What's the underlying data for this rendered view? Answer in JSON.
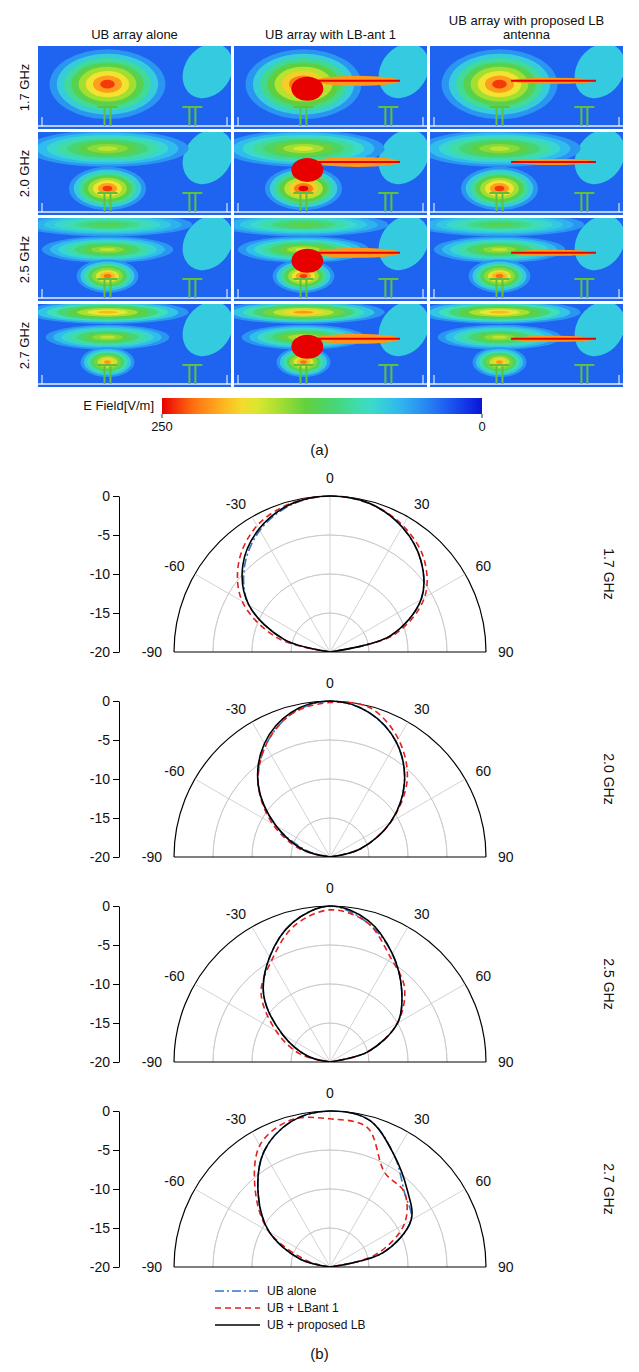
{
  "field_figure": {
    "column_titles": [
      "UB array alone",
      "UB array with LB-ant 1",
      "UB array with  proposed LB antenna"
    ],
    "row_labels": [
      "1.7 GHz",
      "2.0 GHz",
      "2.5 GHz",
      "2.7 GHz"
    ],
    "colorbar": {
      "label": "E Field[V/m]",
      "range": [
        0,
        250
      ],
      "ticks": [
        250,
        0
      ]
    },
    "label": "(a)"
  },
  "chart_data": [
    {
      "type": "polar",
      "title": "1.7 GHz",
      "x": [
        -90,
        -75,
        -60,
        -45,
        -30,
        -15,
        0,
        15,
        30,
        45,
        60,
        75,
        90
      ],
      "xlim": [
        -90,
        90
      ],
      "xticks": [
        -90,
        -60,
        -30,
        0,
        30,
        60,
        90
      ],
      "ylim": [
        -20,
        0
      ],
      "yticks": [
        0,
        -5,
        -10,
        -15,
        -20
      ],
      "grid": true,
      "series": [
        {
          "color": "#2e75c7",
          "line_style": "dashdot",
          "values": [
            -20,
            -14,
            -8,
            -4.5,
            -2,
            -0.5,
            0,
            -0.3,
            -1.5,
            -3.5,
            -6.5,
            -12,
            -20
          ]
        },
        {
          "color": "#e02020",
          "line_style": "dashed",
          "values": [
            -20,
            -13,
            -7,
            -3.5,
            -1.3,
            -0.3,
            0,
            -0.3,
            -1.3,
            -3,
            -6,
            -11.5,
            -20
          ]
        },
        {
          "color": "#000000",
          "line_style": "solid",
          "values": [
            -20,
            -14,
            -8,
            -4.2,
            -1.8,
            -0.4,
            0,
            -0.3,
            -1.5,
            -3.5,
            -6.5,
            -12,
            -20
          ]
        }
      ]
    },
    {
      "type": "polar",
      "title": "2.0 GHz",
      "x": [
        -90,
        -75,
        -60,
        -45,
        -30,
        -15,
        0,
        15,
        30,
        45,
        60,
        75,
        90
      ],
      "xlim": [
        -90,
        90
      ],
      "xticks": [
        -90,
        -60,
        -30,
        0,
        30,
        60,
        90
      ],
      "ylim": [
        -20,
        0
      ],
      "yticks": [
        0,
        -5,
        -10,
        -15,
        -20
      ],
      "grid": true,
      "series": [
        {
          "color": "#2e75c7",
          "line_style": "dashdot",
          "values": [
            -20,
            -17,
            -12,
            -7,
            -3.5,
            -1,
            0,
            -0.8,
            -3,
            -6.5,
            -11,
            -16,
            -20
          ]
        },
        {
          "color": "#e02020",
          "line_style": "dashed",
          "values": [
            -20,
            -16,
            -11.5,
            -7,
            -3.5,
            -1,
            -0.2,
            -0.2,
            -2.5,
            -6,
            -11,
            -16,
            -20
          ]
        },
        {
          "color": "#000000",
          "line_style": "solid",
          "values": [
            -20,
            -16.5,
            -12,
            -7,
            -3.2,
            -0.8,
            0,
            -0.8,
            -3,
            -6.5,
            -11,
            -16,
            -20
          ]
        }
      ]
    },
    {
      "type": "polar",
      "title": "2.5 GHz",
      "x": [
        -90,
        -75,
        -60,
        -45,
        -30,
        -15,
        0,
        15,
        30,
        45,
        60,
        75,
        90
      ],
      "xlim": [
        -90,
        90
      ],
      "xticks": [
        -90,
        -60,
        -30,
        0,
        30,
        60,
        90
      ],
      "ylim": [
        -20,
        0
      ],
      "yticks": [
        0,
        -5,
        -10,
        -15,
        -20
      ],
      "grid": true,
      "series": [
        {
          "color": "#2e75c7",
          "line_style": "dashdot",
          "values": [
            -20,
            -17,
            -13,
            -8,
            -4.5,
            -1.5,
            0,
            -1.5,
            -4,
            -7,
            -10,
            -15,
            -20
          ]
        },
        {
          "color": "#e02020",
          "line_style": "dashed",
          "values": [
            -20,
            -16,
            -12,
            -7.5,
            -5,
            -2,
            -0.5,
            -1.5,
            -4.5,
            -6.5,
            -10,
            -15,
            -20
          ]
        },
        {
          "color": "#000000",
          "line_style": "solid",
          "values": [
            -20,
            -17,
            -13,
            -8,
            -4.5,
            -1.5,
            0,
            -1.2,
            -4,
            -7,
            -10,
            -15,
            -20
          ]
        }
      ]
    },
    {
      "type": "polar",
      "title": "2.7 GHz",
      "x": [
        -90,
        -75,
        -60,
        -45,
        -30,
        -15,
        0,
        15,
        30,
        45,
        60,
        75,
        90
      ],
      "xlim": [
        -90,
        90
      ],
      "xticks": [
        -90,
        -60,
        -30,
        0,
        30,
        60,
        90
      ],
      "ylim": [
        -20,
        0
      ],
      "yticks": [
        0,
        -5,
        -10,
        -15,
        -20
      ],
      "grid": true,
      "legend": "bottom",
      "series": [
        {
          "name": "UB alone",
          "color": "#2e75c7",
          "line_style": "dashdot",
          "values": [
            -20,
            -16,
            -11,
            -7,
            -3,
            -0.7,
            0,
            -0.5,
            -3.5,
            -6.5,
            -8,
            -13,
            -20
          ]
        },
        {
          "name": "UB + LBant 1",
          "color": "#e02020",
          "line_style": "dashed",
          "values": [
            -20,
            -17,
            -11,
            -6.5,
            -2,
            -0.5,
            -1,
            -1.5,
            -6,
            -6.5,
            -9,
            -14,
            -20
          ]
        },
        {
          "name": "UB + proposed LB",
          "color": "#000000",
          "line_style": "solid",
          "values": [
            -20,
            -16,
            -11,
            -7,
            -3,
            -0.7,
            0,
            -0.5,
            -3.5,
            -6,
            -8,
            -13,
            -20
          ]
        }
      ]
    }
  ],
  "panel_b_label": "(b)"
}
